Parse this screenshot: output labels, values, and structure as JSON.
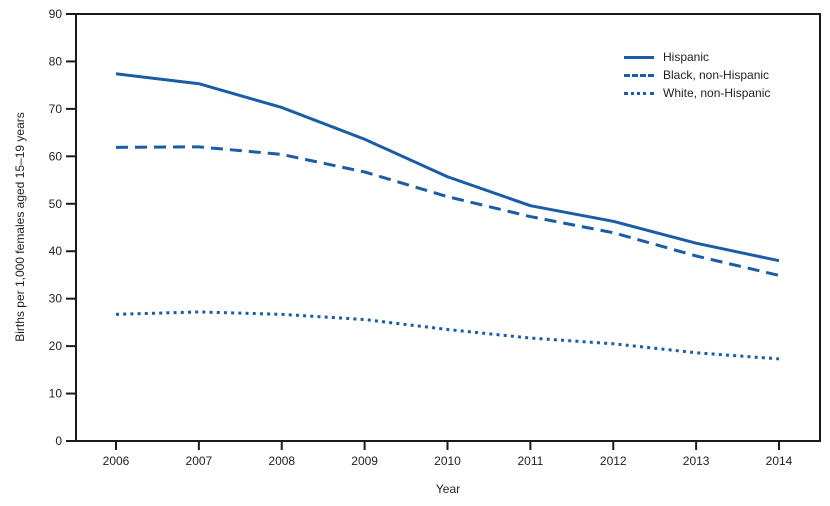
{
  "figure": {
    "background_color": "#ffffff",
    "line_color": "#1a5ca8",
    "axis_color": "#1a1a1a",
    "text_color": "#231f20"
  },
  "chart_data": {
    "type": "line",
    "title": "",
    "xlabel": "Year",
    "ylabel": "Births per 1,000 females aged 15–19 years",
    "x": [
      2006,
      2007,
      2008,
      2009,
      2010,
      2011,
      2012,
      2013,
      2014
    ],
    "series": [
      {
        "name": "Hispanic",
        "style": "solid",
        "values": [
          77.4,
          75.3,
          70.3,
          63.6,
          55.7,
          49.6,
          46.3,
          41.7,
          38.0
        ]
      },
      {
        "name": "Black, non-Hispanic",
        "style": "dashed",
        "values": [
          61.9,
          62.0,
          60.4,
          56.7,
          51.5,
          47.3,
          43.9,
          39.0,
          34.9
        ]
      },
      {
        "name": "White, non-Hispanic",
        "style": "dotted",
        "values": [
          26.7,
          27.2,
          26.7,
          25.6,
          23.5,
          21.7,
          20.5,
          18.6,
          17.3
        ]
      }
    ],
    "ylim": [
      0,
      90
    ],
    "yticks": [
      0,
      10,
      20,
      30,
      40,
      50,
      60,
      70,
      80,
      90
    ],
    "grid": false,
    "legend_position": "upper-right-inside",
    "line_color": "#1a5ca8",
    "axis_color": "#1a1a1a"
  }
}
